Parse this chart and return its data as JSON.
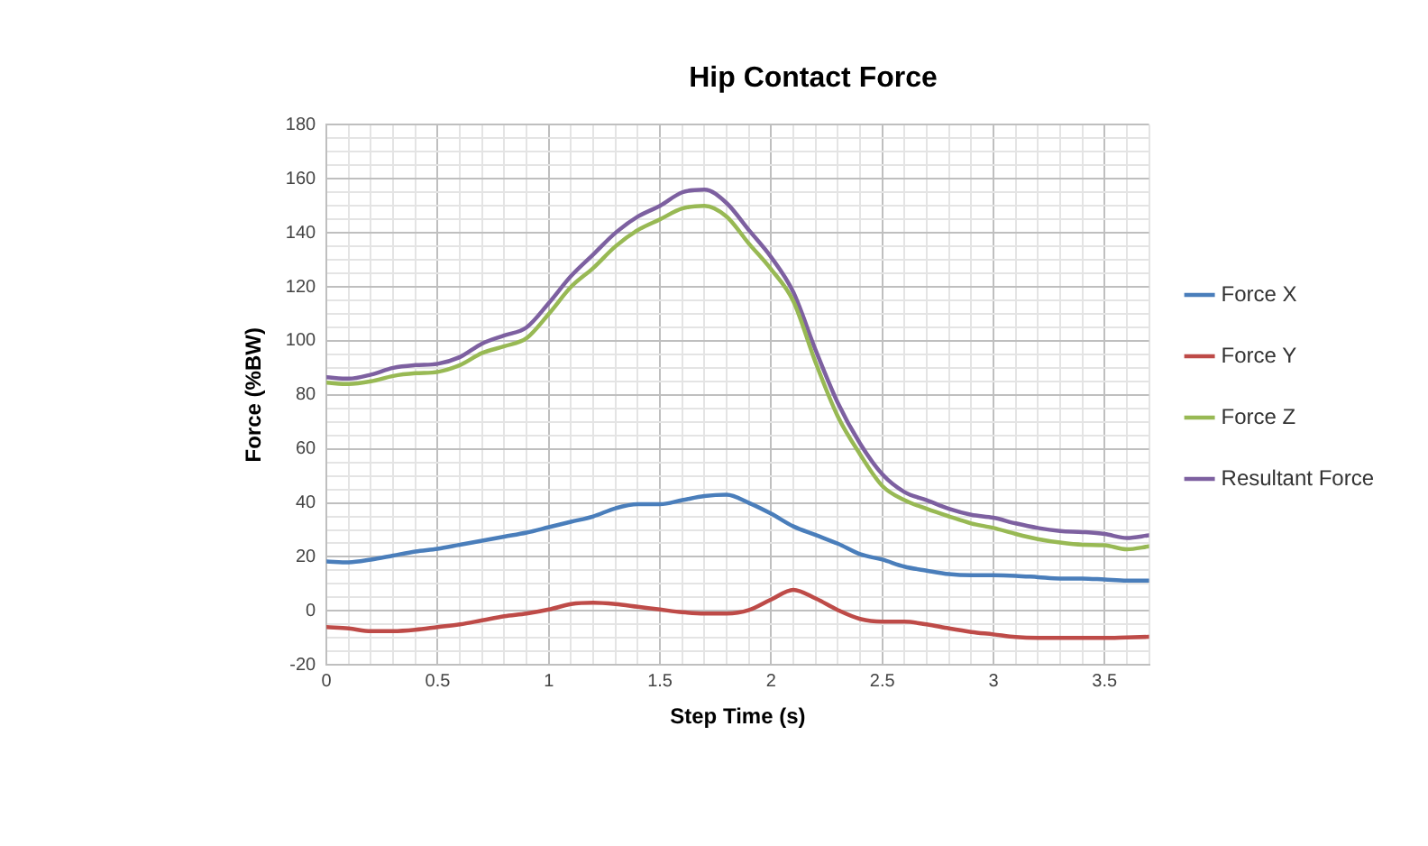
{
  "chart_data": {
    "type": "line",
    "title": "Hip Contact Force",
    "xlabel": "Step Time (s)",
    "ylabel": "Force (%BW)",
    "x": [
      0,
      0.1,
      0.2,
      0.3,
      0.4,
      0.5,
      0.6,
      0.7,
      0.8,
      0.9,
      1,
      1.1,
      1.2,
      1.3,
      1.4,
      1.5,
      1.6,
      1.7,
      1.8,
      1.9,
      2,
      2.1,
      2.2,
      2.3,
      2.4,
      2.5,
      2.6,
      2.7,
      2.8,
      2.9,
      3,
      3.1,
      3.2,
      3.3,
      3.4,
      3.5,
      3.6,
      3.7
    ],
    "series": [
      {
        "name": "Force X",
        "color": "#4a7ebb",
        "values": [
          18.3,
          18,
          19,
          20.5,
          22,
          23,
          24.5,
          26,
          27.5,
          29,
          31,
          33,
          35,
          38,
          39.5,
          39.5,
          41,
          42.5,
          43,
          40,
          36,
          31.3,
          28.1,
          24.9,
          21,
          19,
          16.4,
          14.9,
          13.6,
          13.2,
          13.2,
          13,
          12.5,
          12,
          12,
          11.6,
          11.2,
          11.2
        ]
      },
      {
        "name": "Force Y",
        "color": "#be4b48",
        "values": [
          -6,
          -6.5,
          -7.5,
          -7.5,
          -7,
          -6,
          -5,
          -3.5,
          -2,
          -1,
          0.5,
          2.5,
          3,
          2.5,
          1.5,
          0.5,
          -0.5,
          -1,
          -1,
          0.3,
          4.2,
          7.8,
          4.6,
          0.3,
          -3,
          -4,
          -4,
          -5,
          -6.5,
          -7.8,
          -8.7,
          -9.7,
          -10,
          -10,
          -10,
          -10,
          -9.8,
          -9.6
        ]
      },
      {
        "name": "Force Z",
        "color": "#98b954",
        "values": [
          84.5,
          84,
          85,
          87,
          88,
          88.5,
          91,
          95.5,
          98,
          101,
          110,
          120,
          127,
          135,
          141,
          145,
          149,
          150,
          146,
          136,
          126.5,
          114.7,
          92,
          72,
          58,
          46.3,
          41,
          37.8,
          35,
          32.4,
          30.7,
          28.5,
          26.6,
          25.3,
          24.5,
          24.3,
          22.8,
          23.9
        ]
      },
      {
        "name": "Resultant Force",
        "color": "#7d60a0",
        "values": [
          86.5,
          86,
          87.5,
          90,
          91,
          91.5,
          94,
          99,
          102,
          105,
          114,
          124,
          132,
          140,
          146,
          150,
          155,
          156,
          151,
          141,
          131,
          118,
          96.6,
          77,
          62,
          50.6,
          44,
          41,
          37.8,
          35.6,
          34.5,
          32.4,
          30.7,
          29.6,
          29.2,
          28.5,
          27,
          28
        ]
      }
    ],
    "xlim": [
      0,
      3.7
    ],
    "xticks": [
      0,
      {
        "value": 0.1,
        "label": null
      },
      {
        "value": 0.2,
        "label": null
      },
      {
        "value": 0.3,
        "label": null
      },
      {
        "value": 0.4,
        "label": null
      },
      0.5,
      {
        "value": 0.6,
        "label": null
      },
      {
        "value": 0.7,
        "label": null
      },
      {
        "value": 0.8,
        "label": null
      },
      {
        "value": 0.9,
        "label": null
      },
      1,
      {
        "value": 1.1,
        "label": null
      },
      {
        "value": 1.2,
        "label": null
      },
      {
        "value": 1.3,
        "label": null
      },
      {
        "value": 1.4,
        "label": null
      },
      1.5,
      {
        "value": 1.6,
        "label": null
      },
      {
        "value": 1.7,
        "label": null
      },
      {
        "value": 1.8,
        "label": null
      },
      {
        "value": 1.9,
        "label": null
      },
      2,
      {
        "value": 2.1,
        "label": null
      },
      {
        "value": 2.2,
        "label": null
      },
      {
        "value": 2.3,
        "label": null
      },
      {
        "value": 2.4,
        "label": null
      },
      2.5,
      {
        "value": 2.6,
        "label": null
      },
      {
        "value": 2.7,
        "label": null
      },
      {
        "value": 2.8,
        "label": null
      },
      {
        "value": 2.9,
        "label": null
      },
      3,
      {
        "value": 3.1,
        "label": null
      },
      {
        "value": 3.2,
        "label": null
      },
      {
        "value": 3.3,
        "label": null
      },
      {
        "value": 3.4,
        "label": null
      },
      3.5,
      {
        "value": 3.6,
        "label": null
      },
      {
        "value": 3.7,
        "label": null
      }
    ],
    "ylim": [
      -20,
      180
    ],
    "yticks": [
      -20,
      {
        "value": -15,
        "label": null
      },
      {
        "value": -10,
        "label": null
      },
      {
        "value": -5,
        "label": null
      },
      0,
      {
        "value": 5,
        "label": null
      },
      {
        "value": 10,
        "label": null
      },
      {
        "value": 15,
        "label": null
      },
      20,
      {
        "value": 25,
        "label": null
      },
      {
        "value": 30,
        "label": null
      },
      {
        "value": 35,
        "label": null
      },
      40,
      {
        "value": 45,
        "label": null
      },
      {
        "value": 50,
        "label": null
      },
      {
        "value": 55,
        "label": null
      },
      60,
      {
        "value": 65,
        "label": null
      },
      {
        "value": 70,
        "label": null
      },
      {
        "value": 75,
        "label": null
      },
      80,
      {
        "value": 85,
        "label": null
      },
      {
        "value": 90,
        "label": null
      },
      {
        "value": 95,
        "label": null
      },
      100,
      {
        "value": 105,
        "label": null
      },
      {
        "value": 110,
        "label": null
      },
      {
        "value": 115,
        "label": null
      },
      120,
      {
        "value": 125,
        "label": null
      },
      {
        "value": 130,
        "label": null
      },
      {
        "value": 135,
        "label": null
      },
      140,
      {
        "value": 145,
        "label": null
      },
      {
        "value": 150,
        "label": null
      },
      {
        "value": 155,
        "label": null
      },
      160,
      {
        "value": 165,
        "label": null
      },
      {
        "value": 170,
        "label": null
      },
      {
        "value": 175,
        "label": null
      },
      180
    ],
    "grid": true,
    "legend": "right",
    "marker": "none",
    "line_style": "solid"
  }
}
